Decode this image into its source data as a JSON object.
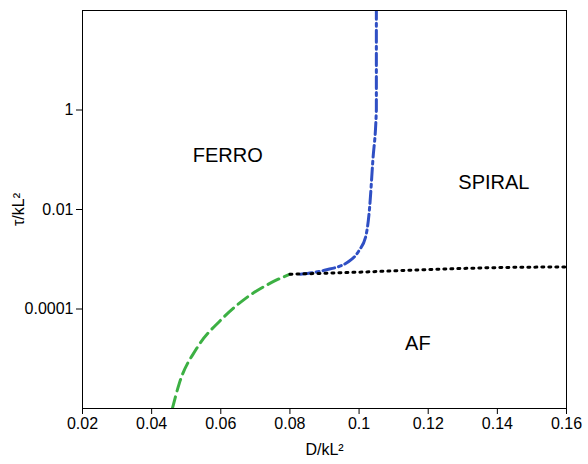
{
  "chart_data": {
    "type": "line",
    "x_label": "D/kL²",
    "y_label": "τ/kL²",
    "log": "y",
    "xlim": [
      0.02,
      0.16
    ],
    "xticks": [
      0.02,
      0.04,
      0.06,
      0.08,
      0.1,
      0.12,
      0.14,
      0.16
    ],
    "ylim": [
      1e-06,
      100
    ],
    "yticks": [
      0.0001,
      0.01,
      1
    ],
    "grid": false,
    "series": [
      {
        "color": "#2f4fc4",
        "line_style": "dashdot",
        "x": [
          0.083,
          0.09,
          0.097,
          0.1,
          0.102,
          0.103,
          0.104,
          0.105,
          0.105
        ],
        "values": [
          0.0005,
          0.0006,
          0.0009,
          0.0015,
          0.003,
          0.01,
          0.1,
          1,
          100
        ]
      },
      {
        "color": "#3cb043",
        "line_style": "dashed",
        "x": [
          0.046,
          0.048,
          0.053,
          0.06,
          0.067,
          0.075,
          0.08
        ],
        "values": [
          1e-06,
          3.2e-06,
          1.6e-05,
          6e-05,
          0.00016,
          0.00035,
          0.0005
        ]
      },
      {
        "color": "#000000",
        "line_style": "dotted",
        "x": [
          0.08,
          0.1,
          0.12,
          0.14,
          0.16
        ],
        "values": [
          0.0005,
          0.00055,
          0.00062,
          0.00068,
          0.0007
        ]
      }
    ],
    "annotations": [
      {
        "text": "FERRO",
        "x": 0.062,
        "y": 0.12
      },
      {
        "text": "SPIRAL",
        "x": 0.139,
        "y": 0.035
      },
      {
        "text": "AF",
        "x": 0.117,
        "y": 2e-05
      }
    ]
  }
}
